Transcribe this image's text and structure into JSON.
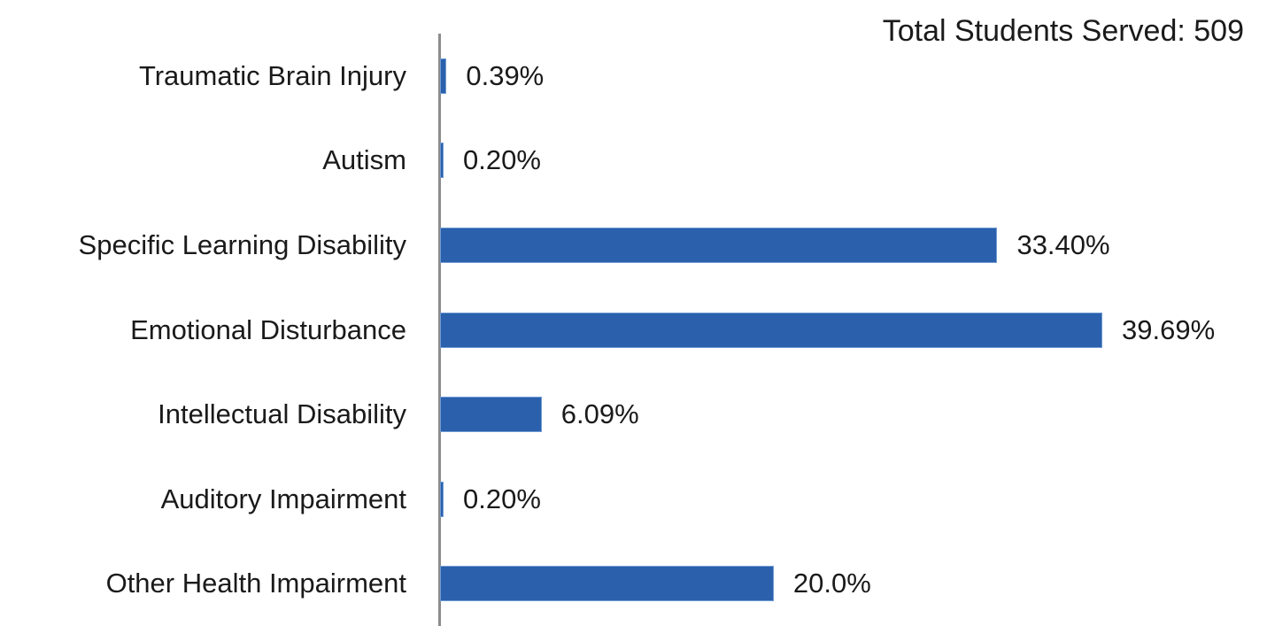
{
  "header": {
    "title": "Total Students Served: 509"
  },
  "colors": {
    "bar_fill": "#2a60ac",
    "bar_border": "#6f9bd2",
    "axis_line": "#8c8c8c",
    "text": "#1a1a1a",
    "background": "#ffffff"
  },
  "chart_data": {
    "type": "bar",
    "orientation": "horizontal",
    "title": "Total Students Served: 509",
    "xlabel": "",
    "ylabel": "",
    "categories": [
      "Traumatic Brain Injury",
      "Autism",
      "Specific Learning Disability",
      "Emotional Disturbance",
      "Intellectual Disability",
      "Auditory Impairment",
      "Other Health Impairment"
    ],
    "values": [
      0.39,
      0.2,
      33.4,
      39.69,
      6.09,
      0.2,
      20.0
    ],
    "value_labels": [
      "0.39%",
      "0.20%",
      "33.40%",
      "39.69%",
      "6.09%",
      "0.20%",
      "20.0%"
    ],
    "total_students": 509,
    "xlim": [
      0,
      40
    ],
    "grid": false,
    "legend": null,
    "data_labels": "outside-end"
  }
}
